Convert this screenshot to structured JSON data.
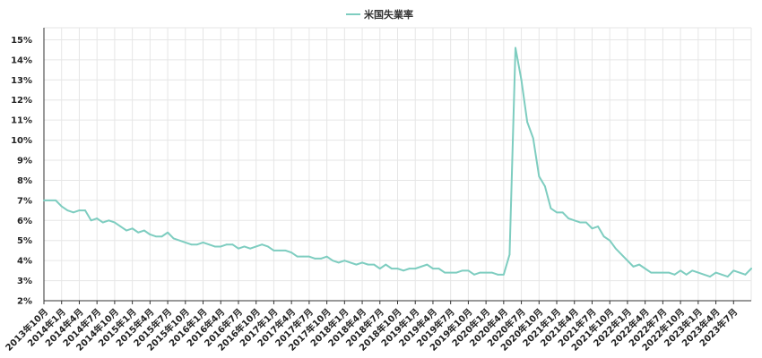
{
  "chart_data": {
    "type": "line",
    "title": "",
    "xlabel": "",
    "ylabel": "",
    "ylim": [
      2,
      15.6
    ],
    "y_ticks": [
      2,
      3,
      4,
      5,
      6,
      7,
      8,
      9,
      10,
      11,
      12,
      13,
      14,
      15
    ],
    "y_tick_labels": [
      "2%",
      "3%",
      "4%",
      "5%",
      "6%",
      "7%",
      "8%",
      "9%",
      "10%",
      "11%",
      "12%",
      "13%",
      "14%",
      "15%"
    ],
    "x_tick_labels": [
      "2013年10月",
      "2014年1月",
      "2014年4月",
      "2014年7月",
      "2014年10月",
      "2015年1月",
      "2015年4月",
      "2015年7月",
      "2015年10月",
      "2016年1月",
      "2016年4月",
      "2016年7月",
      "2016年10月",
      "2017年1月",
      "2017年4月",
      "2017年7月",
      "2017年10月",
      "2018年1月",
      "2018年4月",
      "2018年7月",
      "2018年10月",
      "2019年1月",
      "2019年4月",
      "2019年7月",
      "2019年10月",
      "2020年1月",
      "2020年4月",
      "2020年7月",
      "2020年10月",
      "2021年1月",
      "2021年4月",
      "2021年7月",
      "2021年10月",
      "2022年1月",
      "2022年4月",
      "2022年7月",
      "2022年10月",
      "2023年1月",
      "2023年4月",
      "2023年7月"
    ],
    "legend_position": "top-center",
    "grid": true,
    "series": [
      {
        "name": "米国失業率",
        "color": "#7ecdc0",
        "values": [
          7.0,
          7.0,
          7.0,
          6.7,
          6.5,
          6.4,
          6.5,
          6.5,
          6.0,
          6.1,
          5.9,
          6.0,
          5.9,
          5.7,
          5.5,
          5.6,
          5.4,
          5.5,
          5.3,
          5.2,
          5.2,
          5.4,
          5.1,
          5.0,
          4.9,
          4.8,
          4.8,
          4.9,
          4.8,
          4.7,
          4.7,
          4.8,
          4.8,
          4.6,
          4.7,
          4.6,
          4.7,
          4.8,
          4.7,
          4.5,
          4.5,
          4.5,
          4.4,
          4.2,
          4.2,
          4.2,
          4.1,
          4.1,
          4.2,
          4.0,
          3.9,
          4.0,
          3.9,
          3.8,
          3.9,
          3.8,
          3.8,
          3.6,
          3.8,
          3.6,
          3.6,
          3.5,
          3.6,
          3.6,
          3.7,
          3.8,
          3.6,
          3.6,
          3.4,
          3.4,
          3.4,
          3.5,
          3.5,
          3.3,
          3.4,
          3.4,
          3.4,
          3.3,
          3.3,
          4.3,
          14.6,
          13.0,
          10.9,
          10.1,
          8.2,
          7.7,
          6.6,
          6.4,
          6.4,
          6.1,
          6.0,
          5.9,
          5.9,
          5.6,
          5.7,
          5.2,
          5.0,
          4.6,
          4.3,
          4.0,
          3.7,
          3.8,
          3.6,
          3.4,
          3.4,
          3.4,
          3.4,
          3.3,
          3.5,
          3.3,
          3.5,
          3.4,
          3.3,
          3.2,
          3.4,
          3.3,
          3.2,
          3.5,
          3.4,
          3.3,
          3.6
        ]
      }
    ]
  }
}
